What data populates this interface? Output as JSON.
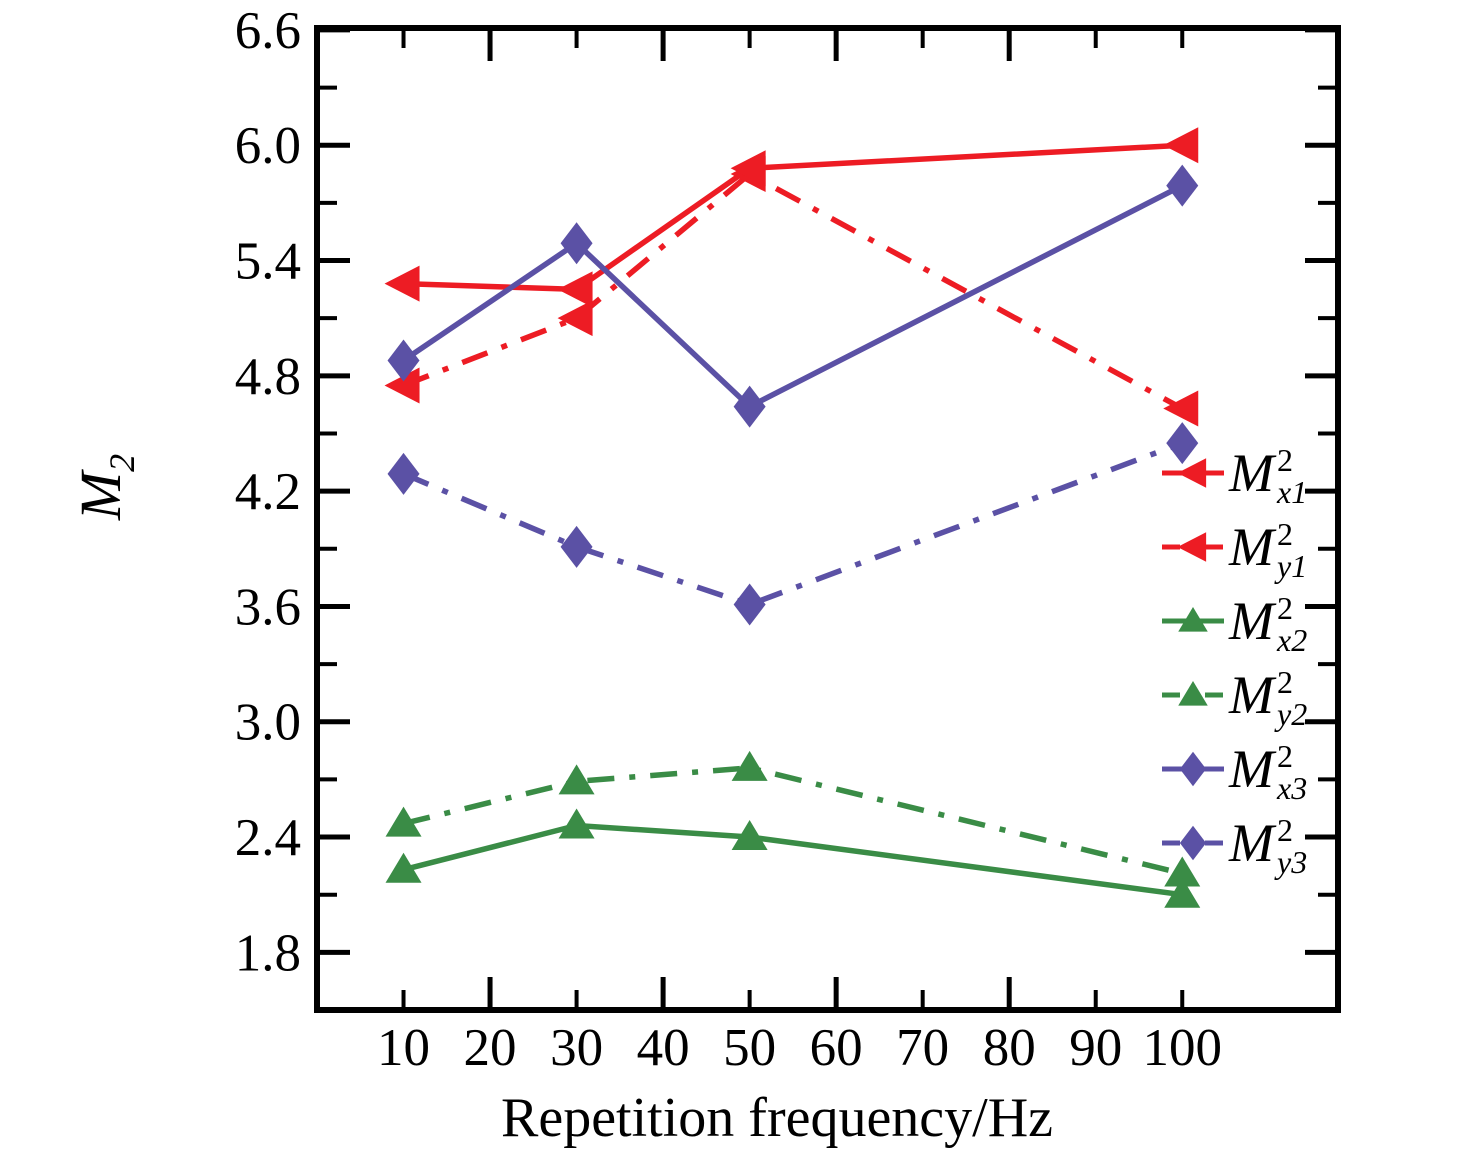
{
  "chart": {
    "xlabel": "Repetition frequency/Hz",
    "ylabel": {
      "main": "M",
      "sub": "2"
    }
  },
  "chart_data": {
    "type": "line",
    "title": "",
    "xlabel": "Repetition frequency/Hz",
    "ylabel": "M2",
    "grid": false,
    "legend_position": "right-inside",
    "xlim": [
      0,
      118
    ],
    "ylim": [
      1.5,
      6.61
    ],
    "x": [
      10,
      30,
      50,
      100
    ],
    "x_tick_values": [
      10,
      20,
      30,
      40,
      50,
      60,
      70,
      80,
      90,
      100
    ],
    "x_tick_labels": [
      "10",
      "20",
      "30",
      "40",
      "50",
      "60",
      "70",
      "80",
      "90",
      "100"
    ],
    "x_tick_major": [
      20,
      40,
      60,
      80
    ],
    "y_tick_major": [
      1.8,
      2.4,
      3.0,
      3.6,
      4.2,
      4.8,
      5.4,
      6.0,
      6.6
    ],
    "y_tick_labels": [
      "1.8",
      "2.4",
      "3.0",
      "3.6",
      "4.2",
      "4.8",
      "5.4",
      "6.0",
      "6.6"
    ],
    "y_tick_minor": [
      2.1,
      2.7,
      3.3,
      3.9,
      4.5,
      5.1,
      5.7,
      6.3
    ],
    "series": [
      {
        "name": "Mx1",
        "label": {
          "main": "M",
          "sup": "2",
          "sub": "x1"
        },
        "color": "#ED1C24",
        "line": "solid",
        "marker": "triangle-left",
        "values": [
          5.28,
          5.25,
          5.88,
          6.0
        ]
      },
      {
        "name": "My1",
        "label": {
          "main": "M",
          "sup": "2",
          "sub": "y1"
        },
        "color": "#ED1C24",
        "line": "dashdot",
        "marker": "triangle-left",
        "values": [
          4.75,
          5.1,
          5.85,
          4.63
        ]
      },
      {
        "name": "Mx2",
        "label": {
          "main": "M",
          "sup": "2",
          "sub": "x2"
        },
        "color": "#3A8C46",
        "line": "solid",
        "marker": "triangle-up",
        "values": [
          2.23,
          2.46,
          2.4,
          2.1
        ]
      },
      {
        "name": "My2",
        "label": {
          "main": "M",
          "sup": "2",
          "sub": "y2"
        },
        "color": "#3A8C46",
        "line": "dashdot",
        "marker": "triangle-up",
        "values": [
          2.47,
          2.69,
          2.76,
          2.21
        ]
      },
      {
        "name": "Mx3",
        "label": {
          "main": "M",
          "sup": "2",
          "sub": "x3"
        },
        "color": "#5B51A5",
        "line": "solid",
        "marker": "diamond",
        "values": [
          4.88,
          5.49,
          4.64,
          5.79
        ]
      },
      {
        "name": "My3",
        "label": {
          "main": "M",
          "sup": "2",
          "sub": "y3"
        },
        "color": "#5B51A5",
        "line": "dashdot",
        "marker": "diamond",
        "values": [
          4.29,
          3.91,
          3.61,
          4.45
        ]
      }
    ],
    "draw_order": [
      "My2",
      "Mx2",
      "My1",
      "Mx1",
      "My3",
      "Mx3"
    ]
  }
}
